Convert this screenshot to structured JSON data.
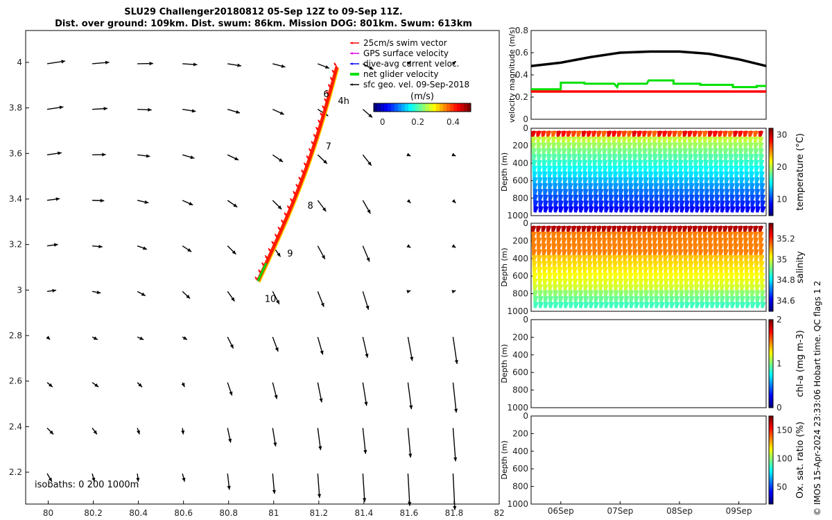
{
  "title_line1": "SLU29 Challenger20180812 05-Sep 12Z to 09-Sep 11Z.",
  "title_line2": "Dist. over ground: 109km. Dist. swum: 86km. Mission DOG: 801km. Swum: 613km",
  "credit": "© IMOS 15-Apr-2024 23:33:06 Hobart time. QC flags 1  2",
  "colors": {
    "swim": "#ff0000",
    "gps": "#e000e0",
    "dive": "#0000ff",
    "net": "#00e000",
    "sfc": "#000000",
    "track": "#ff2000"
  },
  "chart_data": [
    {
      "type": "vector-map",
      "x_ticks": [
        "80",
        "80.2",
        "80.4",
        "80.6",
        "80.8",
        "81",
        "81.2",
        "81.4",
        "81.6",
        "81.8",
        "82"
      ],
      "y_ticks": [
        "4",
        "3.8",
        "3.6",
        "3.4",
        "3.2",
        "3",
        "2.8",
        "2.6",
        "2.4",
        "2.2"
      ],
      "xlim": [
        79.9,
        82.0
      ],
      "ylim": [
        2.06,
        4.14
      ],
      "isobaths_label": "isobaths: 0   200   1000m",
      "day_labels": [
        "6",
        "4h",
        "7",
        "8",
        "9",
        "10"
      ],
      "legend": [
        "25cm/s swim vector",
        "GPS surface velocity",
        "dive-avg current veloc.",
        "net glider velocity",
        "sfc geo. vel. 09-Sep-2018"
      ],
      "colorbar": {
        "label": "(m/s)",
        "ticks": [
          "0",
          "0.2",
          "0.4"
        ],
        "range": [
          -0.05,
          0.5
        ]
      },
      "track": {
        "start": [
          80.93,
          3.04
        ],
        "end": [
          81.28,
          3.98
        ]
      }
    },
    {
      "type": "line",
      "ylabel": "velocity magnitude (m/s)",
      "ylim": [
        0,
        0.8
      ],
      "y_ticks": [
        "0",
        "0.2",
        "0.4",
        "0.6",
        "0.8"
      ],
      "xlim": [
        5.5,
        9.46
      ],
      "series": [
        {
          "name": "sfc geo. vel.",
          "color": "#000000",
          "x": [
            5.5,
            6.0,
            6.5,
            7.0,
            7.5,
            8.0,
            8.5,
            9.0,
            9.46
          ],
          "values": [
            0.48,
            0.51,
            0.56,
            0.6,
            0.61,
            0.61,
            0.59,
            0.54,
            0.48
          ]
        },
        {
          "name": "net glider velocity",
          "color": "#00e000",
          "x": [
            5.5,
            6.0,
            6.0,
            6.4,
            6.4,
            6.9,
            6.95,
            6.97,
            7.45,
            7.48,
            7.9,
            7.9,
            8.35,
            8.35,
            8.9,
            8.9,
            9.3,
            9.3,
            9.46
          ],
          "values": [
            0.27,
            0.27,
            0.33,
            0.33,
            0.32,
            0.32,
            0.29,
            0.32,
            0.32,
            0.35,
            0.35,
            0.32,
            0.32,
            0.31,
            0.31,
            0.29,
            0.29,
            0.3,
            0.3
          ]
        },
        {
          "name": "swim vector",
          "color": "#ff0000",
          "x": [
            5.5,
            9.46
          ],
          "values": [
            0.25,
            0.25
          ]
        }
      ]
    },
    {
      "type": "heatmap",
      "variable": "temperature",
      "ylabel": "Depth (m)",
      "cbar_label": "temperature (°C)",
      "cbar_ticks": [
        "30",
        "20",
        "10"
      ],
      "crange": [
        5,
        32
      ],
      "y_ticks": [
        "0",
        "200",
        "400",
        "600",
        "800",
        "1000"
      ],
      "ylim": [
        0,
        1000
      ]
    },
    {
      "type": "heatmap",
      "variable": "salinity",
      "ylabel": "Depth (m)",
      "cbar_label": "salinity",
      "cbar_ticks": [
        "35.2",
        "35",
        "34.8",
        "34.6"
      ],
      "crange": [
        34.5,
        35.35
      ],
      "y_ticks": [
        "0",
        "200",
        "400",
        "600",
        "800",
        "1000"
      ],
      "ylim": [
        0,
        1000
      ]
    },
    {
      "type": "heatmap",
      "variable": "chl-a",
      "ylabel": "Depth (m)",
      "cbar_label": "chl-a (mg m-3)",
      "cbar_ticks": [
        "2",
        "1",
        "0"
      ],
      "crange": [
        0,
        2
      ],
      "y_ticks": [
        "0",
        "200",
        "400",
        "600",
        "800",
        "1000"
      ],
      "ylim": [
        0,
        1000
      ]
    },
    {
      "type": "heatmap",
      "variable": "oxygen",
      "ylabel": "Depth (m)",
      "cbar_label": "Ox. sat. ratio (%)",
      "cbar_ticks": [
        "150",
        "100",
        "50"
      ],
      "crange": [
        20,
        175
      ],
      "y_ticks": [
        "0",
        "200",
        "400",
        "600",
        "800",
        "1000"
      ],
      "ylim": [
        0,
        1000
      ],
      "x_ticks": [
        "06Sep",
        "07Sep",
        "08Sep",
        "09Sep"
      ]
    }
  ]
}
